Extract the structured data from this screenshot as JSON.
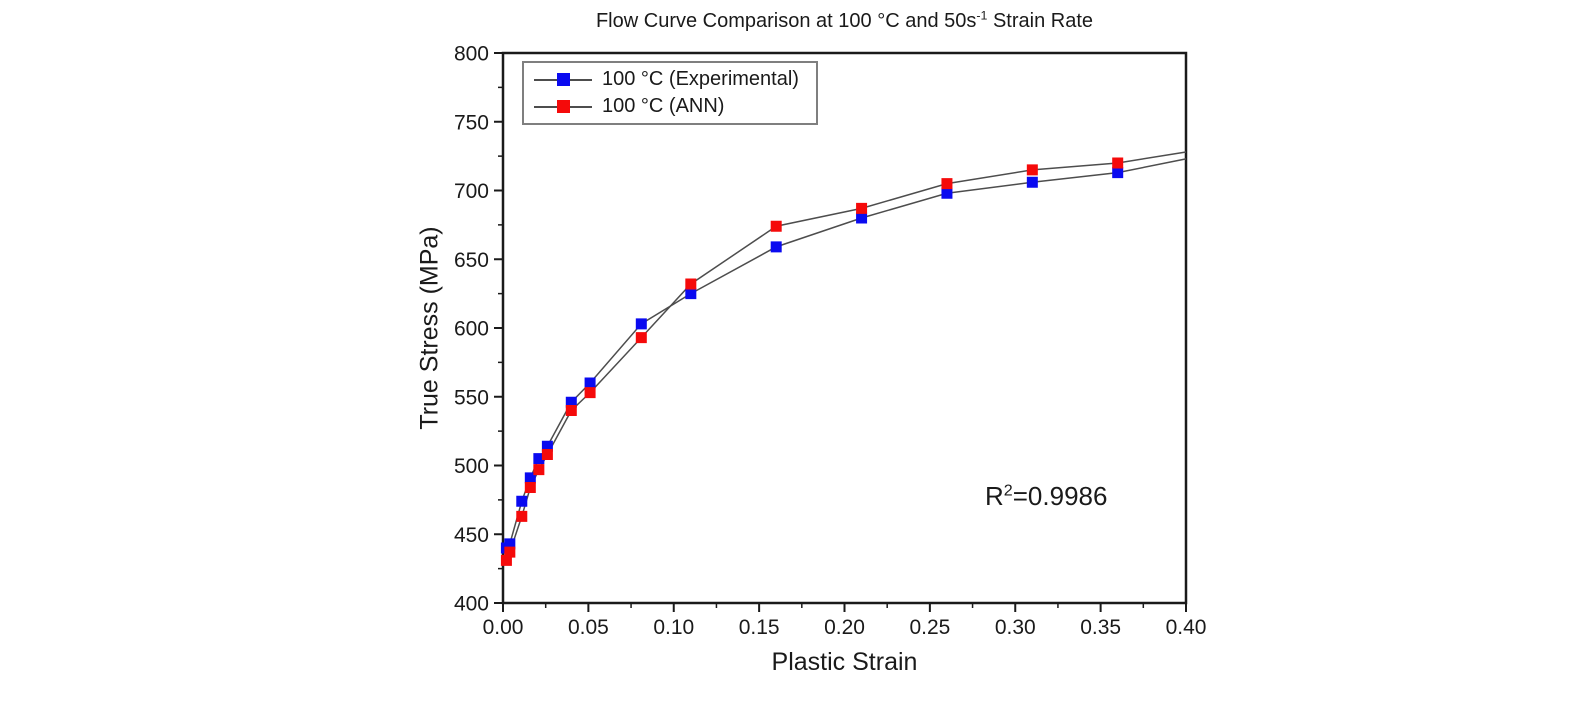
{
  "chart_data": {
    "type": "line",
    "title": "Flow Curve Comparison at 100 °C and 50s⁻¹ Strain Rate",
    "title_parts": {
      "pre": "Flow Curve Comparison at 100 °C and 50s",
      "sup": "-1",
      "post": " Strain Rate"
    },
    "xlabel": "Plastic Strain",
    "ylabel": "True Stress (MPa)",
    "xlim": [
      0.0,
      0.4
    ],
    "ylim": [
      400,
      800
    ],
    "x_major_ticks": [
      0.0,
      0.05,
      0.1,
      0.15,
      0.2,
      0.25,
      0.3,
      0.35,
      0.4
    ],
    "x_tick_labels": [
      "0.00",
      "0.05",
      "0.10",
      "0.15",
      "0.20",
      "0.25",
      "0.30",
      "0.35",
      "0.40"
    ],
    "x_minor_step": 0.025,
    "y_major_ticks": [
      400,
      450,
      500,
      550,
      600,
      650,
      700,
      750,
      800
    ],
    "y_tick_labels": [
      "400",
      "450",
      "500",
      "550",
      "600",
      "650",
      "700",
      "750",
      "800"
    ],
    "y_minor_step": 25,
    "grid": false,
    "frame_color": "#1a1a1a",
    "line_color": "#4d4d4d",
    "annotation": {
      "base": "R",
      "sup": "2",
      "rest": "=0.9986"
    },
    "legend": {
      "position": "top-left",
      "entries": [
        {
          "label": "100 °C (Experimental)",
          "color": "#0a0af0"
        },
        {
          "label": "100 °C (ANN)",
          "color": "#f50a0a"
        }
      ]
    },
    "x": [
      0.002,
      0.004,
      0.011,
      0.016,
      0.021,
      0.026,
      0.04,
      0.051,
      0.081,
      0.11,
      0.16,
      0.21,
      0.26,
      0.31,
      0.36
    ],
    "series": [
      {
        "name": "100 °C (Experimental)",
        "marker": "square",
        "color": "#0a0af0",
        "values": [
          440,
          443,
          474,
          491,
          505,
          514,
          546,
          560,
          603,
          625,
          659,
          680,
          698,
          706,
          713
        ],
        "line_end": {
          "x": 0.4,
          "y": 723
        }
      },
      {
        "name": "100 °C (ANN)",
        "marker": "square",
        "color": "#f50a0a",
        "values": [
          431,
          437,
          463,
          484,
          497,
          508,
          540,
          553,
          593,
          632,
          674,
          687,
          705,
          715,
          720
        ],
        "line_end": {
          "x": 0.4,
          "y": 728
        }
      }
    ]
  }
}
